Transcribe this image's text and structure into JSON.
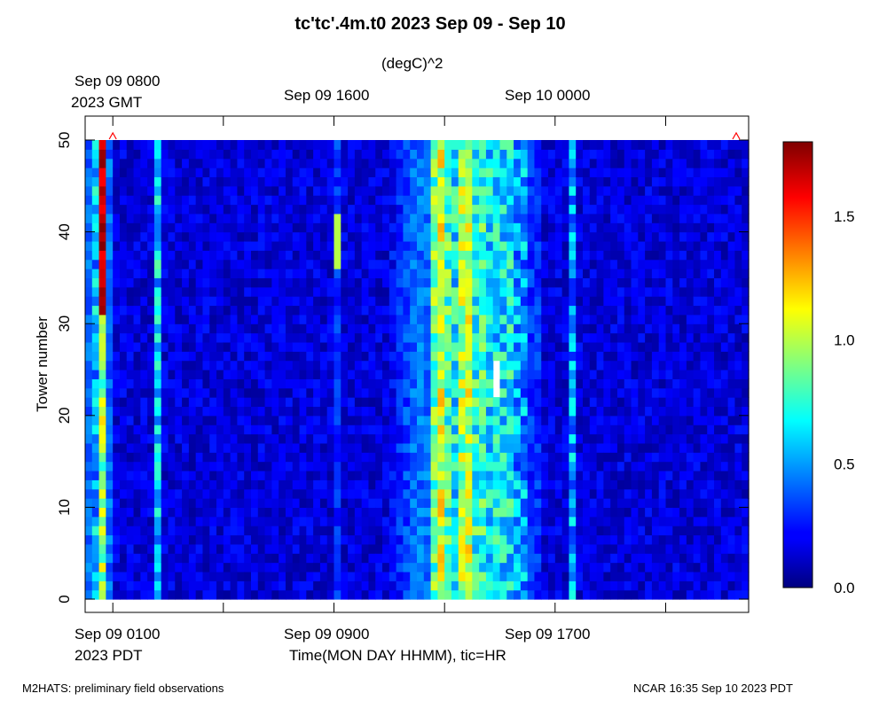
{
  "chart_data": {
    "type": "heatmap",
    "title": "tc'tc'.4m.t0 2023 Sep 09 - Sep 10",
    "units_label": "(degC)^2",
    "ylabel": "Tower number",
    "xlabel": "Time(MON DAY HHMM), tic=HR",
    "ylim": [
      0,
      50
    ],
    "y_ticks": [
      "0",
      "10",
      "20",
      "30",
      "40",
      "50"
    ],
    "bottom_axis": {
      "labels": [
        "Sep 09 0100",
        "Sep 09 0900",
        "Sep 09 1700"
      ],
      "zone_label": "2023 PDT"
    },
    "top_axis": {
      "labels": [
        "Sep 09 0800",
        "Sep 09 1600",
        "Sep 10 0000"
      ],
      "zone_label": "2023 GMT"
    },
    "colorbar": {
      "min": 0.0,
      "max": 1.8,
      "tick_labels": [
        "0.0",
        "0.5",
        "1.0",
        "1.5"
      ],
      "colormap": "jet"
    },
    "time_range_pdt": [
      "Sep 09 0000",
      "Sep 10 0000"
    ],
    "time_bins": 96,
    "tower_count": 50,
    "marker": {
      "symbol": "^",
      "color": "#ff0000",
      "x_label_near": "Sep 09 0100"
    }
  },
  "footer": {
    "left": "M2HATS: preliminary field observations",
    "right": "NCAR 16:35 Sep 10 2023 PDT"
  }
}
